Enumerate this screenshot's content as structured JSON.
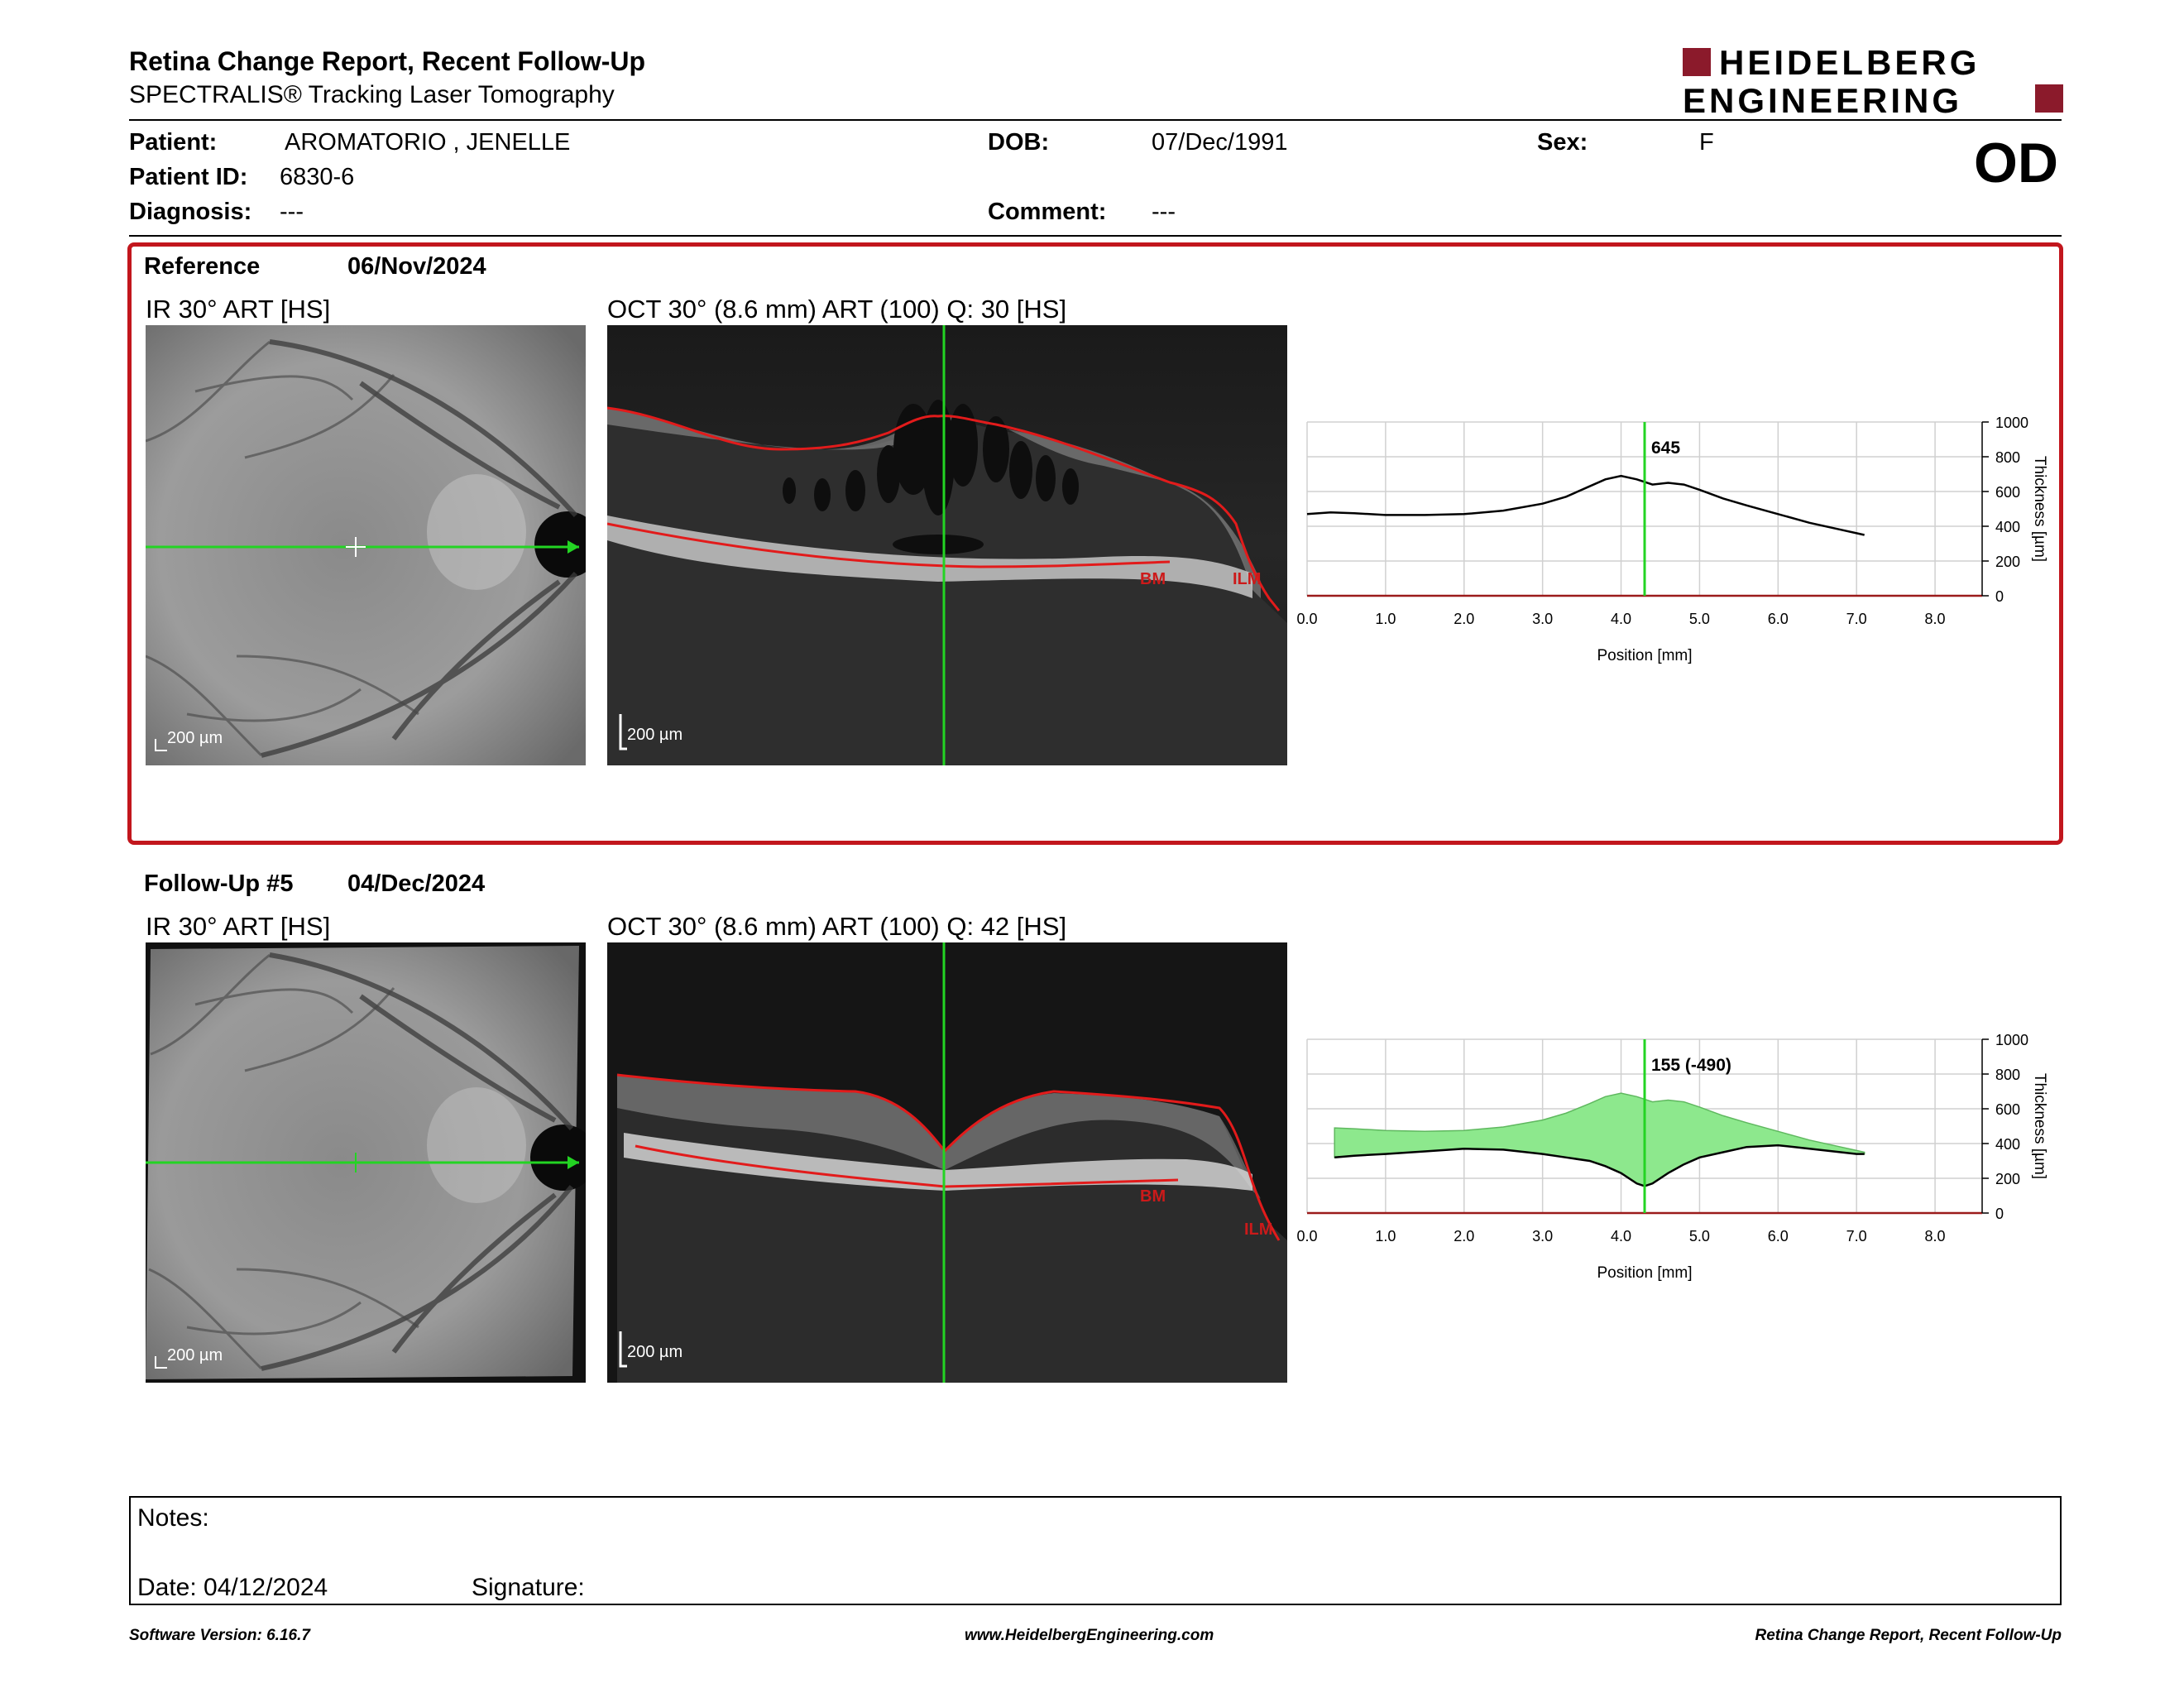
{
  "header": {
    "title": "Retina Change Report, Recent Follow-Up",
    "subtitle": "SPECTRALIS® Tracking Laser Tomography",
    "logo_line1": "HEIDELBERG",
    "logo_line2": "ENGINEERING",
    "eye": "OD"
  },
  "patient": {
    "patient_label": "Patient:",
    "patient_name": "AROMATORIO , JENELLE",
    "dob_label": "DOB:",
    "dob": "07/Dec/1991",
    "sex_label": "Sex:",
    "sex": "F",
    "id_label": "Patient ID:",
    "id": "6830-6",
    "diagnosis_label": "Diagnosis:",
    "diagnosis": "---",
    "comment_label": "Comment:",
    "comment": "---"
  },
  "reference": {
    "label": "Reference",
    "date": "06/Nov/2024",
    "ir_title": "IR 30° ART [HS]",
    "oct_title": "OCT 30° (8.6 mm) ART (100) Q: 30 [HS]",
    "ir_scale": "200 µm",
    "oct_scale": "200 µm",
    "bm_label": "BM",
    "ilm_label": "ILM"
  },
  "followup": {
    "label": "Follow-Up #5",
    "date": "04/Dec/2024",
    "ir_title": "IR 30° ART [HS]",
    "oct_title": "OCT 30° (8.6 mm) ART (100) Q: 42 [HS]",
    "ir_scale": "200 µm",
    "oct_scale": "200 µm",
    "bm_label": "BM",
    "ilm_label": "ILM"
  },
  "chart_data": [
    {
      "type": "line",
      "xlabel": "Position [mm]",
      "ylabel": "Thickness [µm]",
      "xlim": [
        0,
        8.6
      ],
      "ylim": [
        0,
        1000
      ],
      "xticks": [
        "0.0",
        "1.0",
        "2.0",
        "3.0",
        "4.0",
        "5.0",
        "6.0",
        "7.0",
        "8.0"
      ],
      "yticks": [
        "0",
        "200",
        "400",
        "600",
        "800",
        "1000"
      ],
      "cursor_x": 4.3,
      "cursor_label": "645",
      "grid": true,
      "series": [
        {
          "x": [
            0.0,
            0.3,
            0.6,
            1.0,
            1.5,
            2.0,
            2.5,
            3.0,
            3.3,
            3.6,
            3.8,
            4.0,
            4.2,
            4.4,
            4.6,
            4.8,
            5.0,
            5.3,
            5.6,
            6.0,
            6.4,
            6.8,
            7.0,
            7.1
          ],
          "y": [
            470,
            480,
            475,
            465,
            465,
            470,
            490,
            530,
            570,
            630,
            670,
            690,
            670,
            640,
            650,
            640,
            610,
            560,
            520,
            470,
            420,
            380,
            360,
            350
          ]
        }
      ]
    },
    {
      "type": "area",
      "xlabel": "Position [mm]",
      "ylabel": "Thickness [µm]",
      "xlim": [
        0,
        8.6
      ],
      "ylim": [
        0,
        1000
      ],
      "xticks": [
        "0.0",
        "1.0",
        "2.0",
        "3.0",
        "4.0",
        "5.0",
        "6.0",
        "7.0",
        "8.0"
      ],
      "yticks": [
        "0",
        "200",
        "400",
        "600",
        "800",
        "1000"
      ],
      "cursor_x": 4.3,
      "cursor_label": "155 (-490)",
      "grid": true,
      "reference_series": {
        "x": [
          0.35,
          0.6,
          1.0,
          1.5,
          2.0,
          2.5,
          3.0,
          3.3,
          3.6,
          3.8,
          4.0,
          4.2,
          4.4,
          4.6,
          4.8,
          5.0,
          5.3,
          5.6,
          6.0,
          6.4,
          6.8,
          7.0,
          7.1
        ],
        "y": [
          490,
          485,
          475,
          470,
          475,
          495,
          535,
          575,
          630,
          670,
          690,
          670,
          640,
          650,
          640,
          610,
          560,
          520,
          470,
          420,
          380,
          360,
          350
        ]
      },
      "followup_series": {
        "x": [
          0.35,
          0.6,
          1.0,
          1.5,
          2.0,
          2.5,
          3.0,
          3.3,
          3.6,
          3.8,
          4.0,
          4.2,
          4.3,
          4.4,
          4.6,
          4.8,
          5.0,
          5.3,
          5.6,
          6.0,
          6.4,
          6.8,
          7.0,
          7.1
        ],
        "y": [
          320,
          330,
          340,
          355,
          370,
          365,
          340,
          320,
          300,
          270,
          230,
          170,
          155,
          170,
          230,
          280,
          320,
          350,
          380,
          390,
          370,
          350,
          340,
          340
        ]
      }
    }
  ],
  "notes": {
    "notes_label": "Notes:",
    "date_label": "Date: 04/12/2024",
    "signature_label": "Signature:"
  },
  "footer": {
    "software": "Software Version: 6.16.7",
    "website": "www.HeidelbergEngineering.com",
    "report_name": "Retina Change Report, Recent Follow-Up"
  }
}
